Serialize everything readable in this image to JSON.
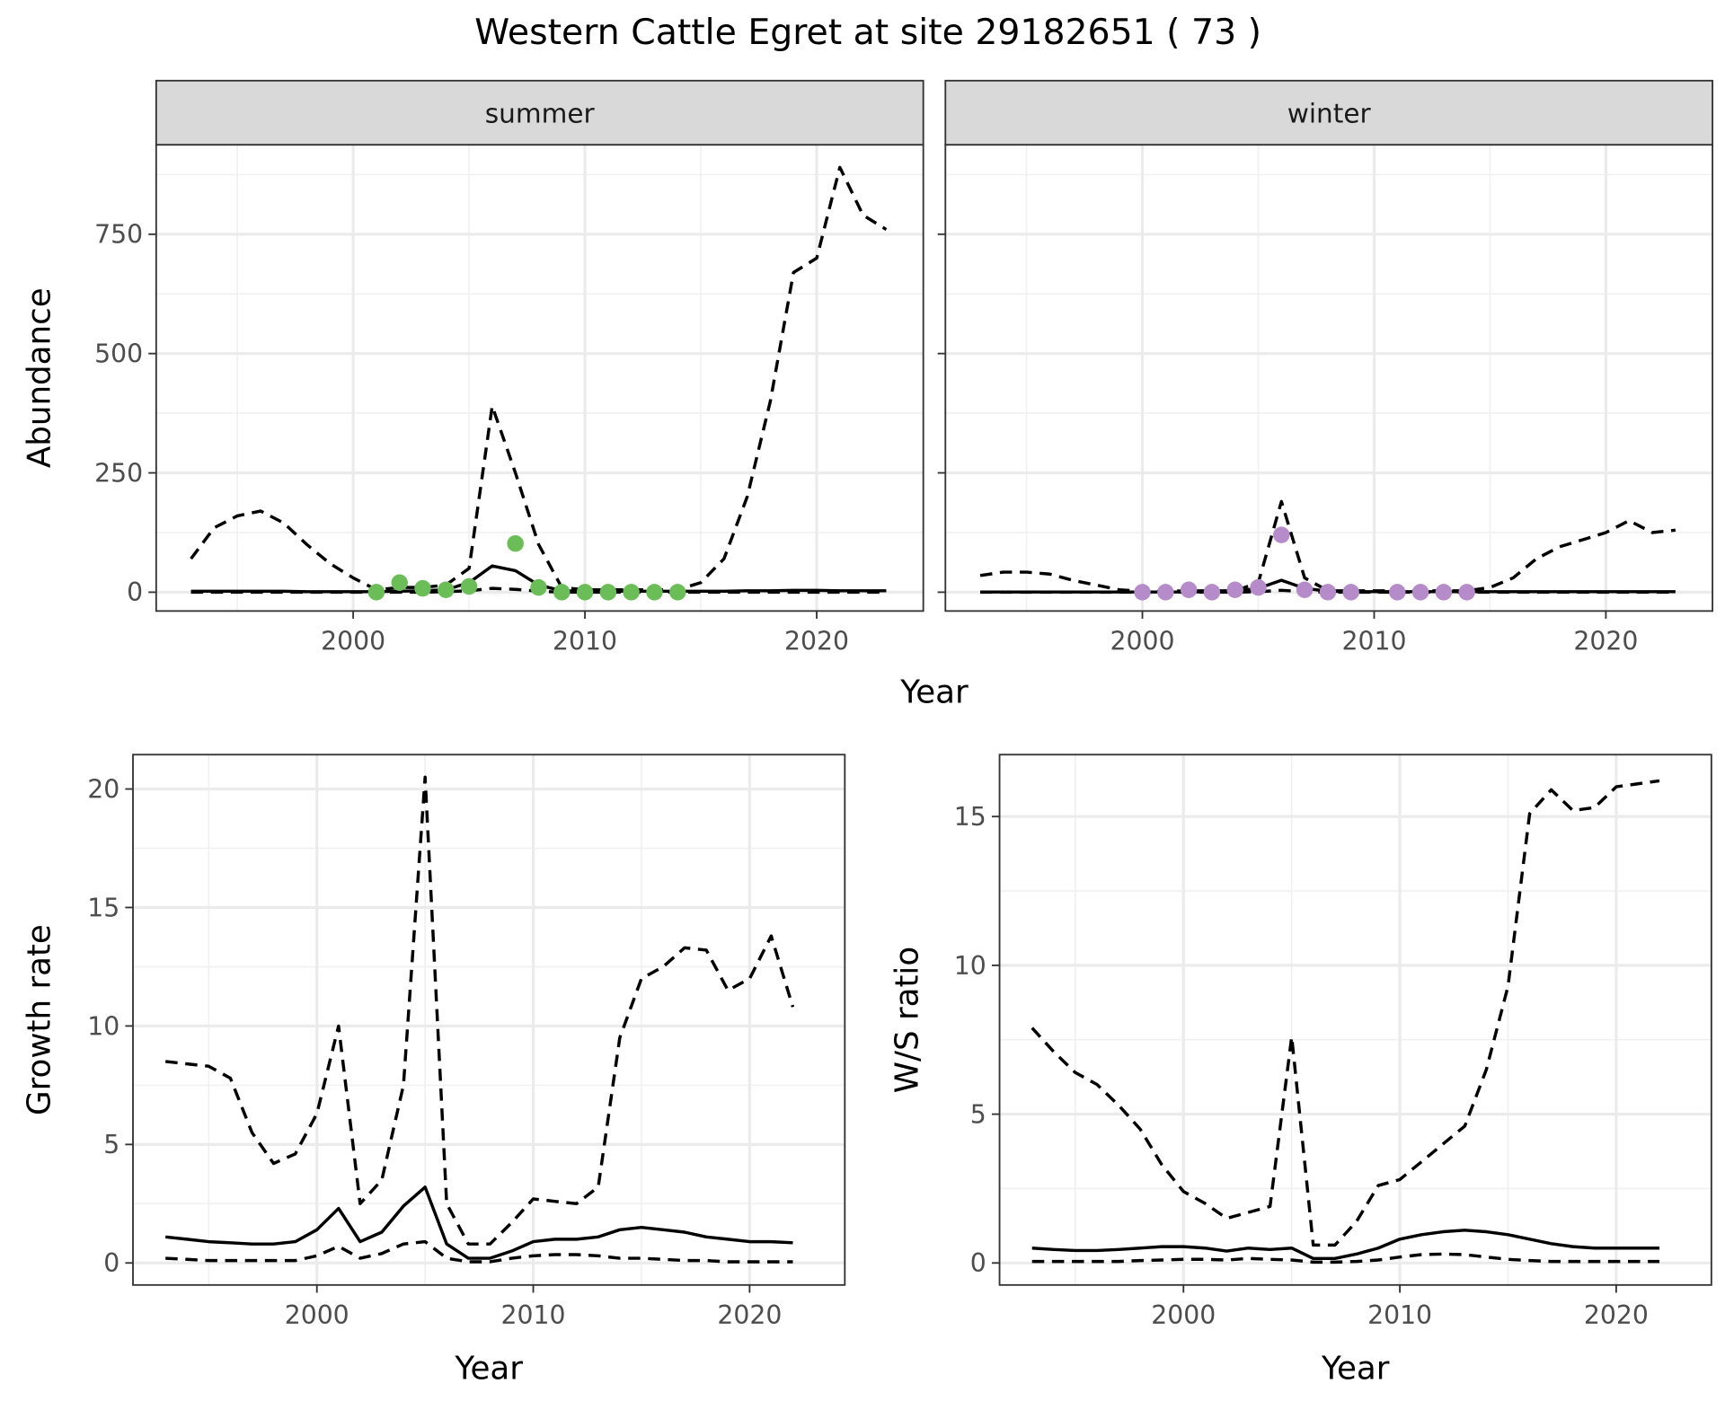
{
  "title": "Western Cattle Egret at site 29182651 ( 73 )",
  "colors": {
    "summer_points": "#6abd57",
    "winter_points": "#b58cc9",
    "line": "#000000",
    "strip": "#d9d9d9"
  },
  "chart_data": [
    {
      "id": "summer",
      "type": "line",
      "strip": "summer",
      "xlabel": "",
      "ylabel": "Abundance",
      "xlim": [
        1991.5,
        2024.6
      ],
      "ylim": [
        -39.4,
        937.5
      ],
      "xticks": [
        2000,
        2010,
        2020
      ],
      "yticks": [
        0,
        250,
        500,
        750
      ],
      "show_y_labels": true,
      "years": [
        1993,
        1994,
        1995,
        1996,
        1997,
        1998,
        1999,
        2000,
        2001,
        2002,
        2003,
        2004,
        2005,
        2006,
        2007,
        2008,
        2009,
        2010,
        2011,
        2012,
        2013,
        2014,
        2015,
        2016,
        2017,
        2018,
        2019,
        2020,
        2021,
        2022,
        2023
      ],
      "series": [
        {
          "name": "upper",
          "style": "dashed",
          "values": [
            70,
            135,
            160,
            170,
            145,
            100,
            60,
            30,
            5,
            10,
            10,
            15,
            50,
            390,
            250,
            100,
            10,
            5,
            5,
            5,
            5,
            5,
            20,
            70,
            200,
            400,
            670,
            700,
            890,
            790,
            760
          ]
        },
        {
          "name": "estimate",
          "style": "solid",
          "values": [
            2,
            2,
            2,
            2,
            2,
            1,
            1,
            1,
            1,
            2,
            3,
            5,
            20,
            55,
            45,
            15,
            3,
            2,
            2,
            2,
            2,
            2,
            2,
            2,
            3,
            3,
            4,
            4,
            3,
            3,
            3
          ]
        },
        {
          "name": "lower",
          "style": "dashed",
          "values": [
            0,
            0,
            0,
            0,
            0,
            0,
            0,
            0,
            0,
            0,
            0,
            1,
            3,
            8,
            6,
            2,
            0,
            0,
            0,
            0,
            0,
            0,
            0,
            0,
            0,
            0,
            0,
            0,
            0,
            0,
            0
          ]
        }
      ],
      "points": {
        "color_key": "summer_points",
        "x": [
          2001,
          2002,
          2003,
          2004,
          2005,
          2007,
          2008,
          2009,
          2010,
          2011,
          2012,
          2013,
          2014
        ],
        "y": [
          0,
          20,
          8,
          5,
          12,
          102,
          10,
          0,
          0,
          0,
          0,
          0,
          0
        ]
      }
    },
    {
      "id": "winter",
      "type": "line",
      "strip": "winter",
      "xlabel": "",
      "ylabel": "",
      "xlim": [
        1991.5,
        2024.6
      ],
      "ylim": [
        -39.4,
        937.5
      ],
      "xticks": [
        2000,
        2010,
        2020
      ],
      "yticks": [
        0,
        250,
        500,
        750
      ],
      "show_y_labels": false,
      "years": [
        1993,
        1994,
        1995,
        1996,
        1997,
        1998,
        1999,
        2000,
        2001,
        2002,
        2003,
        2004,
        2005,
        2006,
        2007,
        2008,
        2009,
        2010,
        2011,
        2012,
        2013,
        2014,
        2015,
        2016,
        2017,
        2018,
        2019,
        2020,
        2021,
        2022,
        2023
      ],
      "series": [
        {
          "name": "upper",
          "style": "dashed",
          "values": [
            35,
            42,
            42,
            38,
            25,
            15,
            5,
            2,
            2,
            3,
            3,
            3,
            20,
            190,
            30,
            3,
            3,
            3,
            3,
            3,
            3,
            3,
            10,
            30,
            70,
            95,
            110,
            125,
            150,
            125,
            130
          ]
        },
        {
          "name": "estimate",
          "style": "solid",
          "values": [
            0.5,
            0.5,
            0.5,
            0.5,
            0.5,
            0.5,
            0.5,
            0.5,
            0.5,
            0.5,
            1,
            2,
            8,
            25,
            8,
            2,
            1,
            1,
            1,
            1,
            1,
            1,
            1,
            1,
            1,
            1,
            1,
            1,
            1,
            1,
            1
          ]
        },
        {
          "name": "lower",
          "style": "dashed",
          "values": [
            0,
            0,
            0,
            0,
            0,
            0,
            0,
            0,
            0,
            0,
            0,
            0,
            1,
            4,
            1,
            0,
            0,
            0,
            0,
            0,
            0,
            0,
            0,
            0,
            0,
            0,
            0,
            0,
            0,
            0,
            0
          ]
        }
      ],
      "points": {
        "color_key": "winter_points",
        "x": [
          2000,
          2001,
          2002,
          2003,
          2004,
          2005,
          2006,
          2007,
          2008,
          2009,
          2011,
          2012,
          2013,
          2014
        ],
        "y": [
          0,
          0,
          5,
          0,
          5,
          10,
          120,
          5,
          0,
          0,
          0,
          0,
          0,
          0
        ]
      }
    },
    {
      "id": "growth",
      "type": "line",
      "xlabel": "Year",
      "ylabel": "Growth rate",
      "xlim": [
        1991.5,
        2024.4
      ],
      "ylim": [
        -0.93,
        21.45
      ],
      "xticks": [
        2000,
        2010,
        2020
      ],
      "yticks": [
        0,
        5,
        10,
        15,
        20
      ],
      "show_y_labels": true,
      "years": [
        1993,
        1994,
        1995,
        1996,
        1997,
        1998,
        1999,
        2000,
        2001,
        2002,
        2003,
        2004,
        2005,
        2006,
        2007,
        2008,
        2009,
        2010,
        2011,
        2012,
        2013,
        2014,
        2015,
        2016,
        2017,
        2018,
        2019,
        2020,
        2021,
        2022
      ],
      "series": [
        {
          "name": "upper",
          "style": "dashed",
          "values": [
            8.5,
            8.4,
            8.3,
            7.8,
            5.5,
            4.2,
            4.6,
            6.3,
            10,
            2.5,
            3.5,
            7.5,
            20.5,
            2.5,
            0.8,
            0.8,
            1.7,
            2.7,
            2.6,
            2.5,
            3.2,
            9.5,
            12,
            12.5,
            13.3,
            13.2,
            11.5,
            12,
            13.8,
            10.8
          ]
        },
        {
          "name": "estimate",
          "style": "solid",
          "values": [
            1.1,
            1.0,
            0.9,
            0.85,
            0.8,
            0.8,
            0.9,
            1.4,
            2.3,
            0.9,
            1.3,
            2.4,
            3.2,
            0.8,
            0.2,
            0.2,
            0.5,
            0.9,
            1.0,
            1.0,
            1.1,
            1.4,
            1.5,
            1.4,
            1.3,
            1.1,
            1.0,
            0.9,
            0.9,
            0.85
          ]
        },
        {
          "name": "lower",
          "style": "dashed",
          "values": [
            0.2,
            0.15,
            0.1,
            0.1,
            0.1,
            0.1,
            0.1,
            0.3,
            0.7,
            0.2,
            0.4,
            0.8,
            0.9,
            0.2,
            0.05,
            0.05,
            0.2,
            0.3,
            0.35,
            0.35,
            0.3,
            0.2,
            0.2,
            0.15,
            0.1,
            0.1,
            0.05,
            0.05,
            0.05,
            0.05
          ]
        }
      ]
    },
    {
      "id": "ratio",
      "type": "line",
      "xlabel": "Year",
      "ylabel": "W/S ratio",
      "xlim": [
        1991.5,
        2024.4
      ],
      "ylim": [
        -0.74,
        17.08
      ],
      "xticks": [
        2000,
        2010,
        2020
      ],
      "yticks": [
        0,
        5,
        10,
        15
      ],
      "show_y_labels": true,
      "years": [
        1993,
        1994,
        1995,
        1996,
        1997,
        1998,
        1999,
        2000,
        2001,
        2002,
        2003,
        2004,
        2005,
        2006,
        2007,
        2008,
        2009,
        2010,
        2011,
        2012,
        2013,
        2014,
        2015,
        2016,
        2017,
        2018,
        2019,
        2020,
        2021,
        2022
      ],
      "series": [
        {
          "name": "upper",
          "style": "dashed",
          "values": [
            7.9,
            7.1,
            6.4,
            6.0,
            5.3,
            4.5,
            3.3,
            2.4,
            2.0,
            1.5,
            1.7,
            1.9,
            7.6,
            0.6,
            0.6,
            1.4,
            2.6,
            2.8,
            3.4,
            4.0,
            4.6,
            6.5,
            9.3,
            15.1,
            15.9,
            15.2,
            15.3,
            16.0,
            16.1,
            16.2
          ]
        },
        {
          "name": "estimate",
          "style": "solid",
          "values": [
            0.5,
            0.45,
            0.42,
            0.42,
            0.45,
            0.5,
            0.55,
            0.55,
            0.5,
            0.4,
            0.5,
            0.45,
            0.5,
            0.15,
            0.15,
            0.3,
            0.5,
            0.8,
            0.95,
            1.05,
            1.1,
            1.05,
            0.95,
            0.8,
            0.65,
            0.55,
            0.5,
            0.5,
            0.5,
            0.5
          ]
        },
        {
          "name": "lower",
          "style": "dashed",
          "values": [
            0.05,
            0.05,
            0.05,
            0.05,
            0.05,
            0.08,
            0.1,
            0.12,
            0.12,
            0.1,
            0.15,
            0.12,
            0.1,
            0.03,
            0.03,
            0.05,
            0.1,
            0.2,
            0.28,
            0.3,
            0.28,
            0.2,
            0.12,
            0.08,
            0.05,
            0.05,
            0.05,
            0.05,
            0.05,
            0.05
          ]
        }
      ]
    }
  ],
  "shared_xlabel_top": "Year"
}
